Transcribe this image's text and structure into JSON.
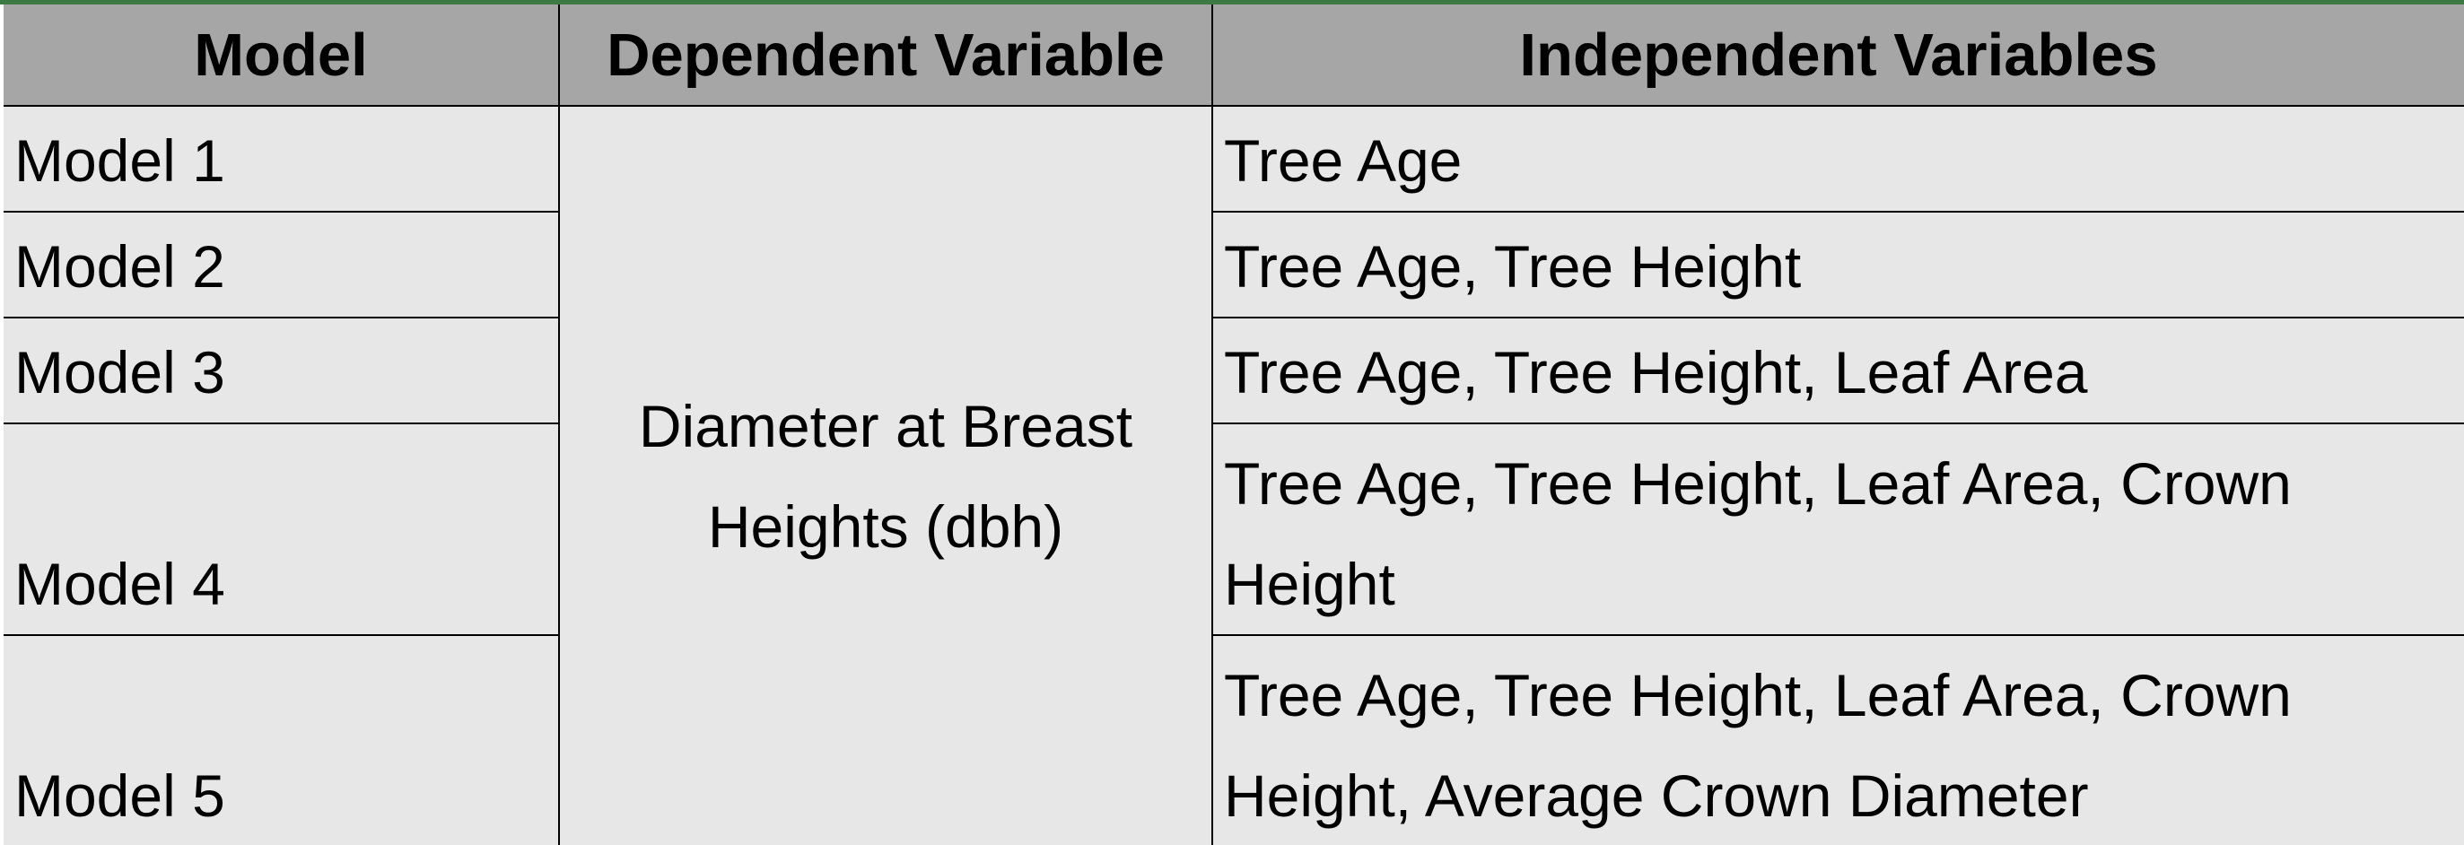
{
  "table": {
    "headers": [
      "Model",
      "Dependent Variable",
      "Independent Variables"
    ],
    "dependent_variable": "Diameter at Breast Heights (dbh)",
    "rows": [
      {
        "model": "Model 1",
        "independent_variables": "Tree Age"
      },
      {
        "model": "Model 2",
        "independent_variables": "Tree Age, Tree Height"
      },
      {
        "model": "Model 3",
        "independent_variables": "Tree Age, Tree Height, Leaf Area"
      },
      {
        "model": "Model 4",
        "independent_variables": "Tree Age, Tree Height, Leaf Area, Crown Height"
      },
      {
        "model": "Model 5",
        "independent_variables": "Tree Age, Tree Height, Leaf Area, Crown Height, Average Crown Diameter"
      }
    ]
  },
  "colors": {
    "header_background": "#a6a6a6",
    "cell_background": "#e7e7e7",
    "border": "#000000",
    "top_accent": "#3c7a44"
  }
}
